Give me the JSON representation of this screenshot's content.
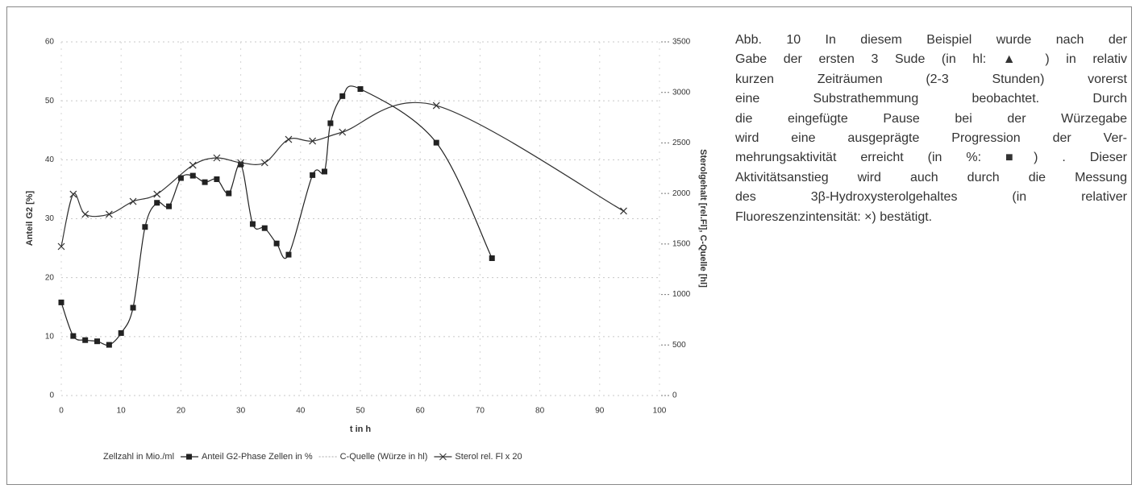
{
  "chart_data": {
    "type": "line",
    "xlabel": "t in h",
    "ylabel": "Anteil G2 [%]",
    "y2label": "Sterolgehalt [rel.Fl], C-Quelle [hl]",
    "xlim": [
      0,
      100
    ],
    "xticks": [
      0,
      10,
      20,
      30,
      40,
      50,
      60,
      70,
      80,
      90,
      100
    ],
    "ylim": [
      0,
      60
    ],
    "yticks": [
      0,
      10,
      20,
      30,
      40,
      50,
      60
    ],
    "y2lim": [
      0,
      3500
    ],
    "y2ticks": [
      0,
      500,
      1000,
      1500,
      2000,
      2500,
      3000,
      3500
    ],
    "grid": true,
    "series": [
      {
        "name": "Zellzahl in Mio./ml",
        "color": "#bbbbbb",
        "x": [],
        "values": []
      },
      {
        "name": "Anteil G2-Phase Zellen in %",
        "color": "#222222",
        "marker": "square",
        "x": [
          0,
          2,
          4,
          6,
          8,
          10,
          12,
          14,
          16,
          18,
          20,
          22,
          24,
          26,
          28,
          30,
          32,
          34,
          36,
          38,
          42,
          44,
          45,
          47,
          50,
          62.7,
          72
        ],
        "values": [
          15.8,
          10.1,
          9.4,
          9.2,
          8.6,
          10.6,
          14.9,
          28.6,
          32.7,
          32.1,
          36.9,
          37.3,
          36.2,
          36.7,
          34.3,
          39.2,
          29.1,
          28.4,
          25.8,
          23.9,
          37.4,
          38.0,
          46.2,
          50.8,
          52.0,
          42.9,
          23.3
        ]
      },
      {
        "name": "C-Quelle (Würze in hl)",
        "color": "#bbbbbb",
        "x": [],
        "values": []
      },
      {
        "name": "Sterol rel. Fl x 20",
        "color": "#333333",
        "marker": "cross",
        "axis": "y2",
        "x": [
          0,
          2,
          4,
          8,
          12,
          16,
          22,
          26,
          30,
          34,
          38,
          42,
          47,
          62.7,
          94
        ],
        "values": [
          1475,
          1993,
          1794,
          1794,
          1921,
          1993,
          2280,
          2352,
          2304,
          2304,
          2535,
          2519,
          2607,
          2870,
          1826
        ]
      }
    ]
  },
  "caption_lines": [
    "Abb. 10  In diesem Beispiel wurde nach der",
    "Gabe der ersten 3 Sude (in hl: ▲ ) in relativ",
    "kurzen Zeiträumen (2-3 Stunden) vorerst",
    "eine Substrathemmung beobachtet. Durch",
    "die eingefügte Pause bei der Würzegabe",
    "wird eine ausgeprägte Progression der Ver-",
    "mehrungsaktivität erreicht (in %: ■) . Dieser",
    "Aktivitätsanstieg wird auch durch die Messung",
    "des 3β-Hydroxysterolgehaltes (in relativer",
    "Fluoreszenzintensität: ×) bestätigt."
  ]
}
